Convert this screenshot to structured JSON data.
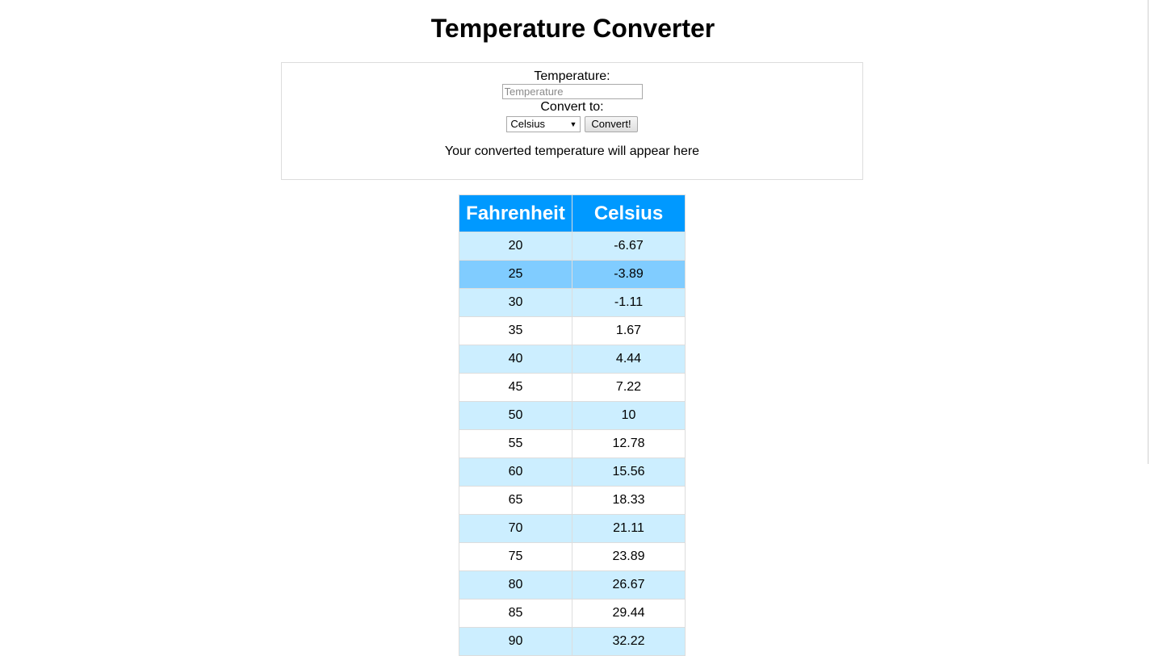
{
  "page": {
    "title": "Temperature Converter"
  },
  "converter": {
    "temperature_label": "Temperature:",
    "temperature_input": {
      "value": "",
      "placeholder": "Temperature"
    },
    "convert_to_label": "Convert to:",
    "unit_select": {
      "selected": "Celsius",
      "arrow": "▼"
    },
    "convert_button": "Convert!",
    "result_text": "Your converted temperature will appear here"
  },
  "table": {
    "headers": [
      "Fahrenheit",
      "Celsius"
    ],
    "highlighted_row": 1,
    "rows": [
      {
        "f": "20",
        "c": "-6.67"
      },
      {
        "f": "25",
        "c": "-3.89"
      },
      {
        "f": "30",
        "c": "-1.11"
      },
      {
        "f": "35",
        "c": "1.67"
      },
      {
        "f": "40",
        "c": "4.44"
      },
      {
        "f": "45",
        "c": "7.22"
      },
      {
        "f": "50",
        "c": "10"
      },
      {
        "f": "55",
        "c": "12.78"
      },
      {
        "f": "60",
        "c": "15.56"
      },
      {
        "f": "65",
        "c": "18.33"
      },
      {
        "f": "70",
        "c": "21.11"
      },
      {
        "f": "75",
        "c": "23.89"
      },
      {
        "f": "80",
        "c": "26.67"
      },
      {
        "f": "85",
        "c": "29.44"
      },
      {
        "f": "90",
        "c": "32.22"
      }
    ]
  },
  "colors": {
    "header_bg": "#0099ff",
    "row_alt_bg": "#cceeff",
    "row_hover_bg": "#80ccff",
    "border": "#dddddd"
  }
}
